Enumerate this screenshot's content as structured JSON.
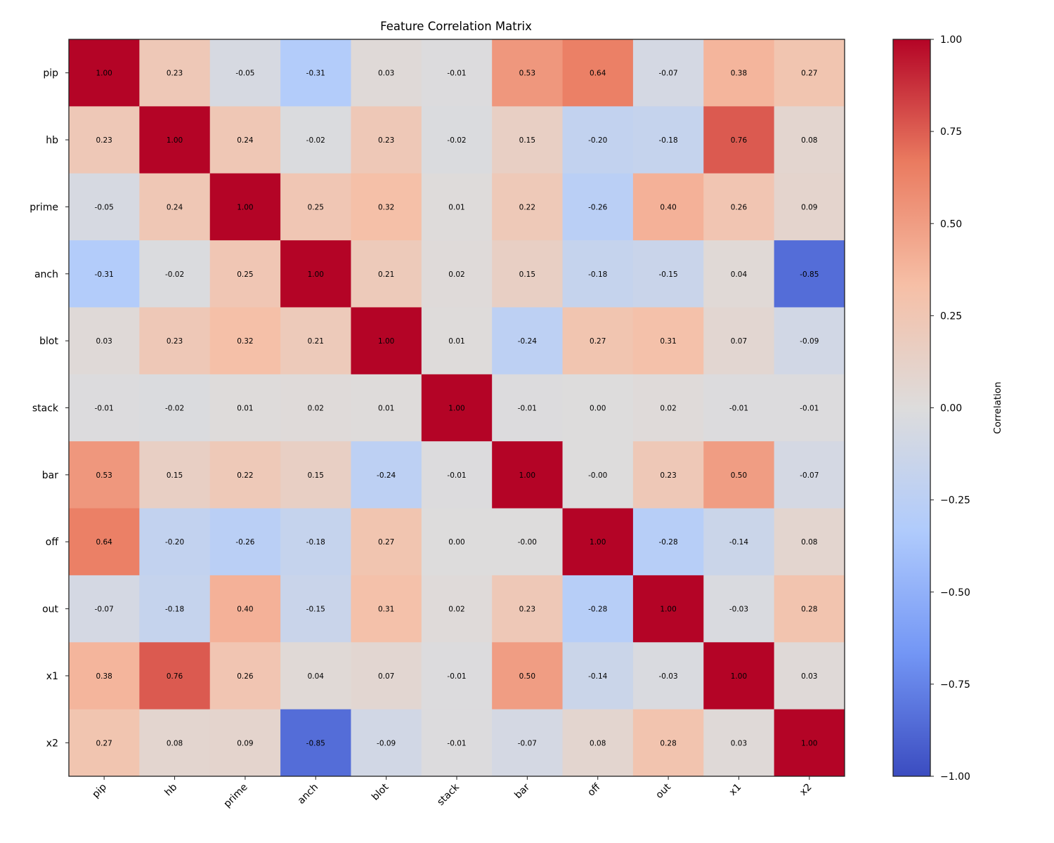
{
  "chart_data": {
    "type": "heatmap",
    "title": "Feature Correlation Matrix",
    "xlabel": "",
    "ylabel": "",
    "x_categories": [
      "pip",
      "hb",
      "prime",
      "anch",
      "blot",
      "stack",
      "bar",
      "off",
      "out",
      "x1",
      "x2"
    ],
    "y_categories": [
      "pip",
      "hb",
      "prime",
      "anch",
      "blot",
      "stack",
      "bar",
      "off",
      "out",
      "x1",
      "x2"
    ],
    "values": [
      [
        1.0,
        0.23,
        -0.05,
        -0.31,
        0.03,
        -0.01,
        0.53,
        0.64,
        -0.07,
        0.38,
        0.27
      ],
      [
        0.23,
        1.0,
        0.24,
        -0.02,
        0.23,
        -0.02,
        0.15,
        -0.2,
        -0.18,
        0.76,
        0.08
      ],
      [
        -0.05,
        0.24,
        1.0,
        0.25,
        0.32,
        0.01,
        0.22,
        -0.26,
        0.4,
        0.26,
        0.09
      ],
      [
        -0.31,
        -0.02,
        0.25,
        1.0,
        0.21,
        0.02,
        0.15,
        -0.18,
        -0.15,
        0.04,
        -0.85
      ],
      [
        0.03,
        0.23,
        0.32,
        0.21,
        1.0,
        0.01,
        -0.24,
        0.27,
        0.31,
        0.07,
        -0.09
      ],
      [
        -0.01,
        -0.02,
        0.01,
        0.02,
        0.01,
        1.0,
        -0.01,
        0.0,
        0.02,
        -0.01,
        -0.01
      ],
      [
        0.53,
        0.15,
        0.22,
        0.15,
        -0.24,
        -0.01,
        1.0,
        -0.0,
        0.23,
        0.5,
        -0.07
      ],
      [
        0.64,
        -0.2,
        -0.26,
        -0.18,
        0.27,
        0.0,
        -0.0,
        1.0,
        -0.28,
        -0.14,
        0.08
      ],
      [
        -0.07,
        -0.18,
        0.4,
        -0.15,
        0.31,
        0.02,
        0.23,
        -0.28,
        1.0,
        -0.03,
        0.28
      ],
      [
        0.38,
        0.76,
        0.26,
        0.04,
        0.07,
        -0.01,
        0.5,
        -0.14,
        -0.03,
        1.0,
        0.03
      ],
      [
        0.27,
        0.08,
        0.09,
        -0.85,
        -0.09,
        -0.01,
        -0.07,
        0.08,
        0.28,
        0.03,
        1.0
      ]
    ],
    "annotations": [
      [
        "1.00",
        "0.23",
        "-0.05",
        "-0.31",
        "0.03",
        "-0.01",
        "0.53",
        "0.64",
        "-0.07",
        "0.38",
        "0.27"
      ],
      [
        "0.23",
        "1.00",
        "0.24",
        "-0.02",
        "0.23",
        "-0.02",
        "0.15",
        "-0.20",
        "-0.18",
        "0.76",
        "0.08"
      ],
      [
        "-0.05",
        "0.24",
        "1.00",
        "0.25",
        "0.32",
        "0.01",
        "0.22",
        "-0.26",
        "0.40",
        "0.26",
        "0.09"
      ],
      [
        "-0.31",
        "-0.02",
        "0.25",
        "1.00",
        "0.21",
        "0.02",
        "0.15",
        "-0.18",
        "-0.15",
        "0.04",
        "-0.85"
      ],
      [
        "0.03",
        "0.23",
        "0.32",
        "0.21",
        "1.00",
        "0.01",
        "-0.24",
        "0.27",
        "0.31",
        "0.07",
        "-0.09"
      ],
      [
        "-0.01",
        "-0.02",
        "0.01",
        "0.02",
        "0.01",
        "1.00",
        "-0.01",
        "0.00",
        "0.02",
        "-0.01",
        "-0.01"
      ],
      [
        "0.53",
        "0.15",
        "0.22",
        "0.15",
        "-0.24",
        "-0.01",
        "1.00",
        "-0.00",
        "0.23",
        "0.50",
        "-0.07"
      ],
      [
        "0.64",
        "-0.20",
        "-0.26",
        "-0.18",
        "0.27",
        "0.00",
        "-0.00",
        "1.00",
        "-0.28",
        "-0.14",
        "0.08"
      ],
      [
        "-0.07",
        "-0.18",
        "0.40",
        "-0.15",
        "0.31",
        "0.02",
        "0.23",
        "-0.28",
        "1.00",
        "-0.03",
        "0.28"
      ],
      [
        "0.38",
        "0.76",
        "0.26",
        "0.04",
        "0.07",
        "-0.01",
        "0.50",
        "-0.14",
        "-0.03",
        "1.00",
        "0.03"
      ],
      [
        "0.27",
        "0.08",
        "0.09",
        "-0.85",
        "-0.09",
        "-0.01",
        "-0.07",
        "0.08",
        "0.28",
        "0.03",
        "1.00"
      ]
    ],
    "colormap": "coolwarm",
    "colormap_stops": [
      "#3b4cc0",
      "#7396f5",
      "#b0cbfc",
      "#dddcdc",
      "#f6bfa6",
      "#ea7b60",
      "#b40426"
    ],
    "vmin": -1.0,
    "vmax": 1.0,
    "x_tick_rotation": "45-degrees",
    "colorbar": {
      "label": "Correlation",
      "placement": "right",
      "ticks": [
        1.0,
        0.75,
        0.5,
        0.25,
        0.0,
        -0.25,
        -0.5,
        -0.75,
        -1.0
      ],
      "tick_labels": [
        "1.00",
        "0.75",
        "0.50",
        "0.25",
        "0.00",
        "−0.25",
        "−0.50",
        "−0.75",
        "−1.00"
      ]
    },
    "grid": false
  }
}
